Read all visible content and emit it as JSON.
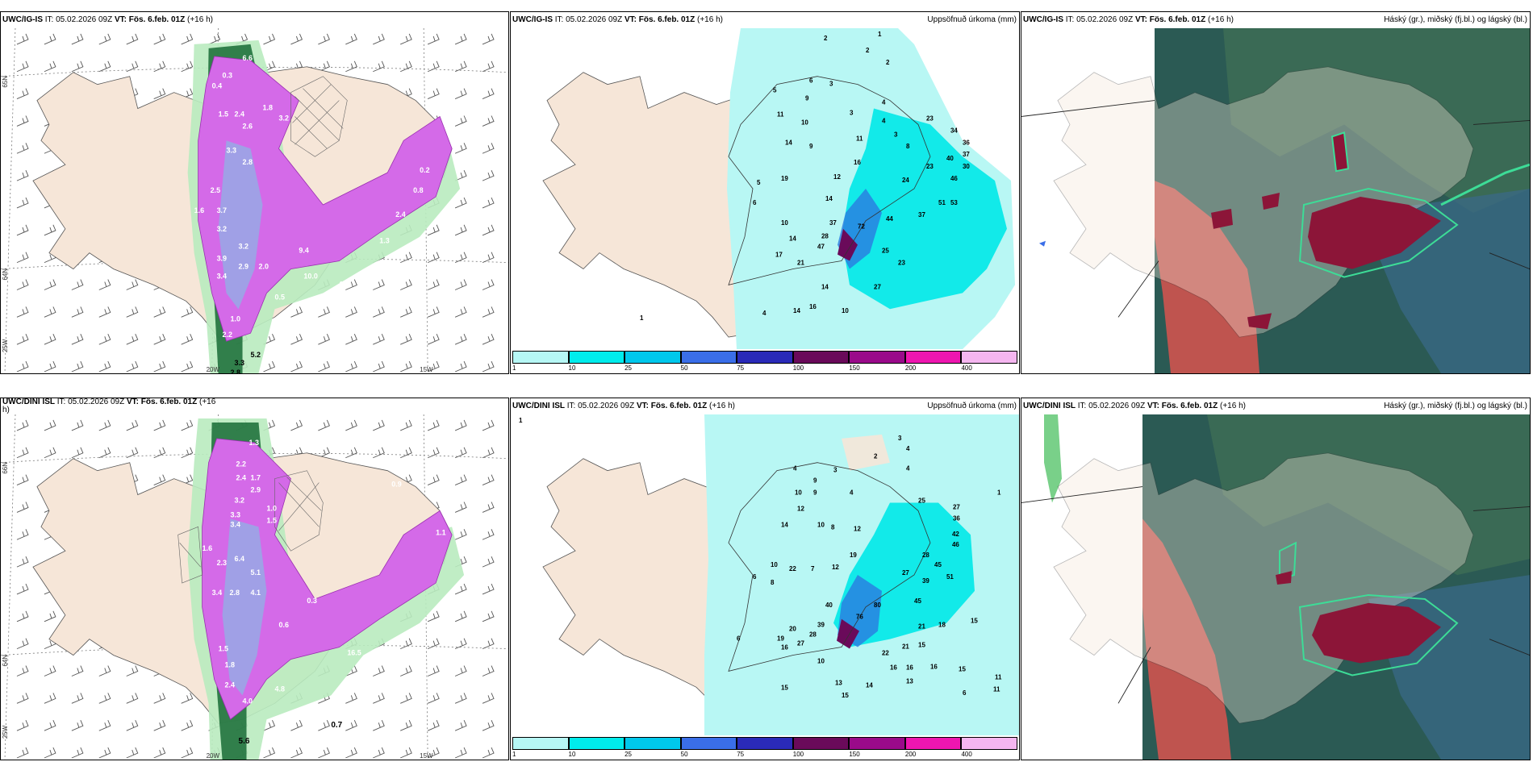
{
  "colors": {
    "land": "#f6e6d8",
    "precip_light": "#b8f7f4",
    "precip_mid": "#00e8e8",
    "purple": "#d46ae8",
    "lavender": "#9aa6e6",
    "green_dark": "#176b35",
    "green_mid": "#58c46b",
    "green_light": "#b9ebbf",
    "teal_dark": "#2b5a54",
    "red": "#d9534f",
    "maroon": "#8c1538"
  },
  "panels": [
    {
      "id": "p1",
      "model": "UWC/IG-IS",
      "it_label": "IT:",
      "it_value": "05.02.2026 09Z",
      "vt_label": "VT:",
      "vt_value": "Fös. 6.feb. 01Z",
      "lead": "(+16 h)",
      "right_title": "",
      "lat_labels": [
        "65N",
        "64N",
        "65N",
        "64N"
      ],
      "lon_labels": [
        "20W",
        "15W",
        "25W"
      ],
      "values": [
        "0.3",
        "0.4",
        "0.5",
        "1.5",
        "2.4",
        "2.6",
        "3.2",
        "1.8",
        "3.3",
        "2.8",
        "2.5",
        "1.6",
        "3.7",
        "3.2",
        "3.9",
        "2.9",
        "3.4",
        "2.0",
        "1.0",
        "2.2",
        "3.3",
        "5.2",
        "2.8",
        "9.4",
        "10.0",
        "1.8",
        "0.5",
        "1.3",
        "0.2",
        "0.8",
        "2.4"
      ]
    },
    {
      "id": "p2",
      "model": "UWC/IG-IS",
      "it_label": "IT:",
      "it_value": "05.02.2026 09Z",
      "vt_label": "VT:",
      "vt_value": "Fös. 6.feb. 01Z",
      "lead": "(+16 h)",
      "right_title": "Uppsöfnuð úrkoma (mm)",
      "values": [
        "2",
        "1",
        "2",
        "2",
        "5",
        "9",
        "3",
        "11",
        "10",
        "3",
        "4",
        "4",
        "14",
        "9",
        "11",
        "3",
        "8",
        "23",
        "34",
        "36",
        "37",
        "30",
        "40",
        "46",
        "16",
        "23",
        "12",
        "24",
        "19",
        "5",
        "6",
        "14",
        "37",
        "72",
        "44",
        "51",
        "53",
        "37",
        "10",
        "25",
        "47",
        "28",
        "14",
        "17",
        "21",
        "23",
        "27",
        "14",
        "14",
        "16",
        "10",
        "4",
        "1",
        "6"
      ]
    },
    {
      "id": "p3",
      "model": "UWC/IG-IS",
      "it_label": "IT:",
      "it_value": "05.02.2026 09Z",
      "vt_label": "VT:",
      "vt_value": "Fös. 6.feb. 01Z",
      "lead": "(+16 h)",
      "right_title": "Háský (gr.), miðský (fj.bl.) og lágský (bl.)"
    },
    {
      "id": "p4",
      "model": "UWC/DINI ISL",
      "it_label": "IT:",
      "it_value": "05.02.2026 09Z",
      "vt_label": "VT:",
      "vt_value": "Fös. 6.feb. 01Z",
      "lead": "(+16",
      "lead_cont": "h)",
      "right_title": "",
      "lat_labels": [
        "66N",
        "64N",
        "66N",
        "64N"
      ],
      "lon_labels": [
        "20W",
        "15W",
        "25W"
      ],
      "values": [
        "1.3",
        "0.9",
        "2.2",
        "2.4",
        "1.7",
        "2.9",
        "3.2",
        "1.0",
        "1.5",
        "3.4",
        "3.3",
        "2.3",
        "1.6",
        "6.4",
        "5.1",
        "3.4",
        "2.8",
        "4.1",
        "1.5",
        "1.8",
        "2.4",
        "4.0",
        "4.8",
        "0.7",
        "5.6",
        "16.5",
        "0.6",
        "0.3",
        "0.8",
        "1.1"
      ]
    },
    {
      "id": "p5",
      "model": "UWC/DINI ISL",
      "it_label": "IT:",
      "it_value": "05.02.2026 09Z",
      "vt_label": "VT:",
      "vt_value": "Fös. 6.feb. 01Z",
      "lead": "(+16 h)",
      "right_title": "Uppsöfnuð úrkoma (mm)",
      "values": [
        "1",
        "3",
        "4",
        "2",
        "4",
        "3",
        "9",
        "4",
        "4",
        "25",
        "27",
        "1",
        "9",
        "10",
        "12",
        "8",
        "12",
        "36",
        "42",
        "46",
        "19",
        "14",
        "10",
        "22",
        "7",
        "12",
        "28",
        "45",
        "51",
        "6",
        "8",
        "40",
        "76",
        "80",
        "45",
        "27",
        "39",
        "20",
        "39",
        "28",
        "19",
        "27",
        "16",
        "10",
        "21",
        "18",
        "15",
        "22",
        "21",
        "15",
        "16",
        "16",
        "13",
        "14",
        "13",
        "15",
        "11",
        "11",
        "15",
        "6"
      ]
    },
    {
      "id": "p6",
      "model": "UWC/DINI ISL",
      "it_label": "IT:",
      "it_value": "05.02.2026 09Z",
      "vt_label": "VT:",
      "vt_value": "Fös. 6.feb. 01Z",
      "lead": "(+16 h)",
      "right_title": "Háský (gr.), miðský (fj.bl.) og lágský (bl.)"
    }
  ],
  "colorbar": {
    "colors": [
      "#b6f7f5",
      "#00ecec",
      "#00c8ec",
      "#3a6ee8",
      "#2a2ab8",
      "#6a0a5a",
      "#9a0a8a",
      "#ee16b0",
      "#f5b6f0"
    ],
    "ticks": [
      "1",
      "10",
      "25",
      "50",
      "75",
      "100",
      "150",
      "200",
      "400"
    ]
  }
}
